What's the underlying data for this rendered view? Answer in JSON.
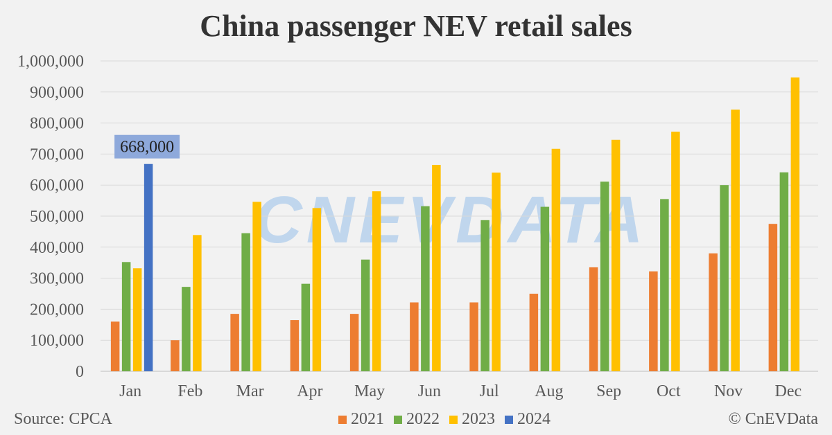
{
  "chart_data": {
    "type": "bar",
    "title": "China passenger NEV retail sales",
    "categories": [
      "Jan",
      "Feb",
      "Mar",
      "Apr",
      "May",
      "Jun",
      "Jul",
      "Aug",
      "Sep",
      "Oct",
      "Nov",
      "Dec"
    ],
    "series": [
      {
        "name": "2021",
        "color": "#ed7d31",
        "values": [
          160000,
          100000,
          185000,
          165000,
          185000,
          222000,
          222000,
          250000,
          335000,
          322000,
          380000,
          475000
        ]
      },
      {
        "name": "2022",
        "color": "#70ad47",
        "values": [
          352000,
          272000,
          445000,
          282000,
          360000,
          532000,
          487000,
          530000,
          611000,
          555000,
          600000,
          641000
        ]
      },
      {
        "name": "2023",
        "color": "#ffc000",
        "values": [
          332000,
          439000,
          546000,
          526000,
          580000,
          665000,
          640000,
          717000,
          746000,
          772000,
          843000,
          947000
        ]
      },
      {
        "name": "2024",
        "color": "#4472c4",
        "values": [
          668000,
          null,
          null,
          null,
          null,
          null,
          null,
          null,
          null,
          null,
          null,
          null
        ]
      }
    ],
    "ylim": [
      0,
      1000000
    ],
    "yticks": [
      0,
      100000,
      200000,
      300000,
      400000,
      500000,
      600000,
      700000,
      800000,
      900000,
      1000000
    ],
    "ytick_labels": [
      "0",
      "100,000",
      "200,000",
      "300,000",
      "400,000",
      "500,000",
      "600,000",
      "700,000",
      "800,000",
      "900,000",
      "1,000,000"
    ],
    "grid": true,
    "legend_position": "bottom",
    "annotations": [
      {
        "text": "668,000",
        "category": "Jan",
        "series": "2024",
        "color": "#8ea9db"
      }
    ],
    "watermark": "CNEVDATA"
  },
  "footer": {
    "source": "Source: CPCA",
    "copyright": "© CnEVData"
  }
}
